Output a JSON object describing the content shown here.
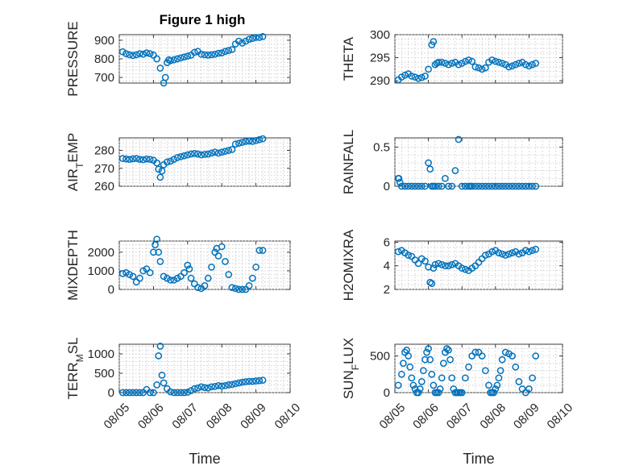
{
  "figure_title": "Figure 1 high",
  "colors": {
    "marker": "#0072BD",
    "axis": "#262626",
    "grid": "#bdbdbd"
  },
  "x_ticks": [
    "08/05",
    "08/06",
    "08/07",
    "08/08",
    "08/09",
    "08/10"
  ],
  "x_label": "Time",
  "chart_data": [
    {
      "type": "scatter",
      "id": "pressure",
      "ylabel": "PRESSURE",
      "ylim": [
        670,
        930
      ],
      "yticks": [
        700,
        800,
        900
      ],
      "xlim": [
        0,
        5
      ],
      "grid": true,
      "x": [
        0.1,
        0.2,
        0.3,
        0.4,
        0.5,
        0.6,
        0.7,
        0.8,
        0.9,
        1.0,
        1.1,
        1.2,
        1.3,
        1.35,
        1.4,
        1.45,
        1.5,
        1.6,
        1.7,
        1.8,
        1.9,
        2.0,
        2.1,
        2.2,
        2.3,
        2.4,
        2.5,
        2.6,
        2.7,
        2.8,
        2.9,
        3.0,
        3.1,
        3.2,
        3.3,
        3.4,
        3.5,
        3.6,
        3.7,
        3.8,
        3.9,
        4.0,
        4.1,
        4.2
      ],
      "y": [
        838,
        828,
        822,
        818,
        822,
        828,
        825,
        832,
        828,
        820,
        800,
        750,
        670,
        700,
        780,
        795,
        790,
        795,
        800,
        805,
        810,
        815,
        820,
        835,
        840,
        825,
        822,
        820,
        822,
        825,
        830,
        832,
        840,
        845,
        850,
        880,
        895,
        885,
        895,
        905,
        910,
        915,
        915,
        920
      ]
    },
    {
      "type": "scatter",
      "id": "theta",
      "ylabel": "THETA",
      "ylim": [
        289.5,
        300
      ],
      "yticks": [
        290,
        295,
        300
      ],
      "xlim": [
        0,
        5
      ],
      "grid": true,
      "x": [
        0.1,
        0.2,
        0.3,
        0.4,
        0.5,
        0.6,
        0.7,
        0.8,
        0.9,
        1.0,
        1.1,
        1.15,
        1.2,
        1.25,
        1.3,
        1.4,
        1.5,
        1.6,
        1.7,
        1.8,
        1.9,
        2.0,
        2.1,
        2.2,
        2.3,
        2.4,
        2.5,
        2.6,
        2.7,
        2.8,
        2.9,
        3.0,
        3.1,
        3.2,
        3.3,
        3.4,
        3.5,
        3.6,
        3.7,
        3.8,
        3.9,
        4.0,
        4.1,
        4.2
      ],
      "y": [
        290.2,
        290.8,
        291.2,
        291.5,
        291.0,
        290.8,
        290.5,
        290.7,
        291.0,
        292.5,
        297.8,
        298.5,
        293.5,
        293.8,
        294.0,
        294.0,
        293.8,
        293.5,
        293.8,
        294.0,
        293.5,
        293.8,
        294.2,
        294.5,
        294.2,
        293.0,
        292.8,
        292.5,
        292.8,
        294.0,
        294.5,
        294.2,
        294.0,
        293.8,
        293.5,
        293.0,
        293.2,
        293.5,
        293.8,
        294.0,
        293.5,
        293.2,
        293.5,
        293.8
      ]
    },
    {
      "type": "scatter",
      "id": "air_temp",
      "ylabel": "AIR_TEMP",
      "ylim": [
        260,
        287
      ],
      "yticks": [
        260,
        270,
        280
      ],
      "xlim": [
        0,
        5
      ],
      "grid": true,
      "x": [
        0.1,
        0.2,
        0.3,
        0.4,
        0.5,
        0.6,
        0.7,
        0.8,
        0.9,
        1.0,
        1.1,
        1.15,
        1.2,
        1.25,
        1.3,
        1.4,
        1.5,
        1.6,
        1.7,
        1.8,
        1.9,
        2.0,
        2.1,
        2.2,
        2.3,
        2.4,
        2.5,
        2.6,
        2.7,
        2.8,
        2.9,
        3.0,
        3.1,
        3.2,
        3.3,
        3.4,
        3.5,
        3.6,
        3.7,
        3.8,
        3.9,
        4.0,
        4.1,
        4.2
      ],
      "y": [
        275.5,
        275.2,
        275.0,
        275.3,
        275.5,
        275.0,
        274.8,
        275.2,
        275.0,
        274.5,
        273.0,
        269.5,
        265.0,
        268.5,
        272.0,
        273.5,
        274.0,
        275.0,
        276.0,
        276.5,
        277.0,
        277.5,
        278.0,
        278.3,
        278.0,
        277.5,
        277.8,
        278.0,
        278.5,
        279.0,
        278.5,
        279.0,
        279.5,
        280.0,
        280.5,
        283.5,
        284.0,
        284.5,
        285.0,
        285.2,
        285.0,
        285.5,
        286.0,
        286.5
      ]
    },
    {
      "type": "scatter",
      "id": "rainfall",
      "ylabel": "RAINFALL",
      "ylim": [
        0,
        0.62
      ],
      "yticks": [
        0,
        0.5
      ],
      "xlim": [
        0,
        5
      ],
      "grid": true,
      "x": [
        0.1,
        0.12,
        0.15,
        0.2,
        0.3,
        0.4,
        0.5,
        0.6,
        0.7,
        0.8,
        0.9,
        1.0,
        1.05,
        1.1,
        1.15,
        1.2,
        1.3,
        1.4,
        1.5,
        1.6,
        1.7,
        1.8,
        1.9,
        2.0,
        2.1,
        2.2,
        2.25,
        2.3,
        2.4,
        2.5,
        2.6,
        2.7,
        2.8,
        2.9,
        3.0,
        3.1,
        3.2,
        3.3,
        3.4,
        3.5,
        3.6,
        3.7,
        3.8,
        3.9,
        4.0,
        4.1,
        4.2
      ],
      "y": [
        0.1,
        0.1,
        0.05,
        0,
        0,
        0,
        0,
        0,
        0,
        0,
        0,
        0.3,
        0.22,
        0,
        0,
        0,
        0,
        0,
        0.1,
        0,
        0,
        0.2,
        0.6,
        0,
        0,
        0,
        0,
        0,
        0,
        0,
        0,
        0,
        0,
        0,
        0,
        0,
        0,
        0,
        0,
        0,
        0,
        0,
        0,
        0,
        0,
        0,
        0
      ]
    },
    {
      "type": "scatter",
      "id": "mixdepth",
      "ylabel": "MIXDEPTH",
      "ylim": [
        0,
        2600
      ],
      "yticks": [
        0,
        1000,
        2000
      ],
      "xlim": [
        0,
        5
      ],
      "grid": true,
      "x": [
        0.1,
        0.2,
        0.3,
        0.4,
        0.5,
        0.6,
        0.7,
        0.8,
        0.9,
        1.0,
        1.05,
        1.1,
        1.15,
        1.2,
        1.3,
        1.4,
        1.5,
        1.6,
        1.7,
        1.8,
        1.9,
        2.0,
        2.05,
        2.1,
        2.2,
        2.3,
        2.4,
        2.5,
        2.6,
        2.7,
        2.8,
        2.85,
        2.9,
        3.0,
        3.1,
        3.2,
        3.3,
        3.4,
        3.5,
        3.6,
        3.7,
        3.8,
        3.9,
        4.0,
        4.1,
        4.2
      ],
      "y": [
        850,
        900,
        800,
        700,
        400,
        600,
        1000,
        1100,
        900,
        2000,
        2400,
        2700,
        2000,
        1500,
        700,
        600,
        500,
        500,
        600,
        700,
        900,
        1300,
        1100,
        600,
        300,
        100,
        50,
        200,
        600,
        1200,
        2000,
        2200,
        1800,
        2300,
        1500,
        800,
        100,
        50,
        0,
        0,
        0,
        200,
        600,
        1200,
        2100,
        2100
      ]
    },
    {
      "type": "scatter",
      "id": "h2omixra",
      "ylabel": "H2OMIXRA",
      "ylim": [
        2,
        6.1
      ],
      "yticks": [
        2,
        4,
        6
      ],
      "xlim": [
        0,
        5
      ],
      "grid": true,
      "x": [
        0.1,
        0.2,
        0.3,
        0.4,
        0.5,
        0.6,
        0.7,
        0.8,
        0.9,
        1.0,
        1.05,
        1.1,
        1.15,
        1.2,
        1.3,
        1.4,
        1.5,
        1.6,
        1.7,
        1.8,
        1.9,
        2.0,
        2.1,
        2.2,
        2.3,
        2.4,
        2.5,
        2.6,
        2.7,
        2.8,
        2.9,
        3.0,
        3.1,
        3.2,
        3.3,
        3.4,
        3.5,
        3.6,
        3.7,
        3.8,
        3.9,
        4.0,
        4.1,
        4.2
      ],
      "y": [
        5.2,
        5.3,
        5.1,
        4.9,
        4.8,
        4.5,
        4.2,
        4.6,
        4.4,
        3.9,
        2.6,
        2.5,
        3.8,
        4.1,
        4.2,
        4.1,
        4.0,
        4.0,
        4.1,
        4.2,
        4.0,
        3.8,
        3.7,
        3.6,
        3.8,
        4.0,
        4.3,
        4.6,
        4.9,
        5.0,
        5.2,
        5.3,
        5.1,
        5.0,
        4.9,
        5.0,
        5.1,
        5.2,
        5.0,
        5.1,
        5.3,
        5.2,
        5.3,
        5.4
      ]
    },
    {
      "type": "scatter",
      "id": "terr_msl",
      "ylabel": "TERR_MSL",
      "ylim": [
        0,
        1250
      ],
      "yticks": [
        0,
        500,
        1000
      ],
      "xlim": [
        0,
        5
      ],
      "grid": true,
      "x": [
        0.1,
        0.2,
        0.3,
        0.4,
        0.5,
        0.6,
        0.7,
        0.8,
        0.9,
        1.0,
        1.1,
        1.15,
        1.2,
        1.25,
        1.3,
        1.4,
        1.5,
        1.6,
        1.7,
        1.8,
        1.9,
        2.0,
        2.1,
        2.2,
        2.3,
        2.4,
        2.5,
        2.6,
        2.7,
        2.8,
        2.9,
        3.0,
        3.1,
        3.2,
        3.3,
        3.4,
        3.5,
        3.6,
        3.7,
        3.8,
        3.9,
        4.0,
        4.1,
        4.2
      ],
      "y": [
        0,
        0,
        0,
        0,
        0,
        0,
        0,
        80,
        0,
        0,
        200,
        950,
        1200,
        450,
        250,
        100,
        20,
        0,
        0,
        0,
        0,
        10,
        50,
        100,
        120,
        150,
        130,
        120,
        150,
        160,
        180,
        170,
        180,
        200,
        210,
        230,
        250,
        270,
        280,
        290,
        290,
        300,
        310,
        320
      ]
    },
    {
      "type": "scatter",
      "id": "sun_flux",
      "ylabel": "SUN_FLUX",
      "ylim": [
        0,
        660
      ],
      "yticks": [
        0,
        500
      ],
      "xlim": [
        0,
        5
      ],
      "grid": true,
      "x": [
        0.1,
        0.2,
        0.25,
        0.3,
        0.35,
        0.4,
        0.45,
        0.5,
        0.55,
        0.6,
        0.65,
        0.7,
        0.75,
        0.8,
        0.85,
        0.9,
        0.95,
        1.0,
        1.05,
        1.1,
        1.15,
        1.2,
        1.25,
        1.3,
        1.35,
        1.4,
        1.45,
        1.5,
        1.55,
        1.6,
        1.65,
        1.7,
        1.75,
        1.8,
        1.85,
        1.9,
        1.95,
        2.0,
        2.1,
        2.2,
        2.3,
        2.4,
        2.5,
        2.6,
        2.7,
        2.8,
        2.85,
        2.9,
        2.95,
        3.0,
        3.05,
        3.1,
        3.15,
        3.2,
        3.3,
        3.4,
        3.5,
        3.6,
        3.7,
        3.8,
        3.9,
        4.0,
        4.1,
        4.2
      ],
      "y": [
        100,
        250,
        400,
        550,
        580,
        500,
        350,
        200,
        100,
        50,
        0,
        0,
        50,
        150,
        300,
        450,
        550,
        600,
        450,
        250,
        100,
        0,
        0,
        0,
        50,
        200,
        400,
        550,
        600,
        580,
        450,
        200,
        50,
        0,
        0,
        0,
        0,
        0,
        200,
        350,
        500,
        550,
        550,
        500,
        300,
        100,
        0,
        0,
        0,
        50,
        100,
        200,
        300,
        450,
        550,
        530,
        500,
        350,
        150,
        50,
        0,
        50,
        200,
        500
      ]
    }
  ]
}
